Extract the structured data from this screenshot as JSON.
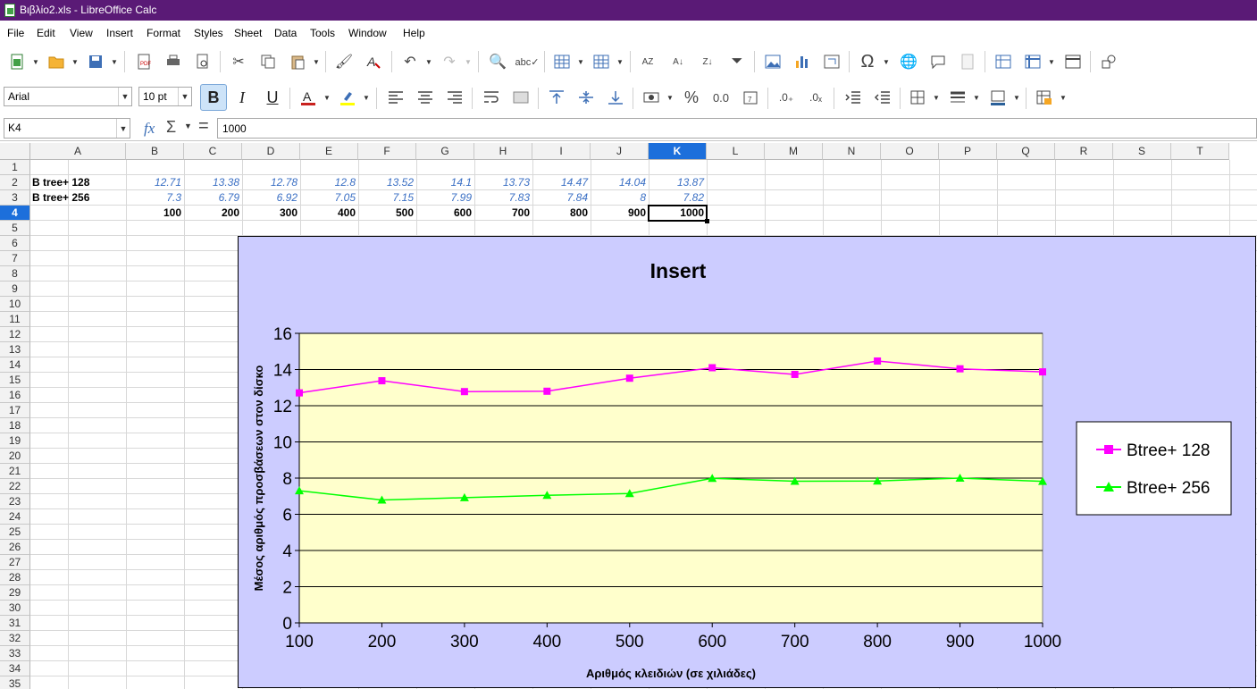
{
  "window": {
    "title": "Βιβλίο2.xls - LibreOffice Calc"
  },
  "menu": [
    "File",
    "Edit",
    "View",
    "Insert",
    "Format",
    "Styles",
    "Sheet",
    "Data",
    "Tools",
    "Window",
    "Help"
  ],
  "toolbar": {
    "font_name": "Arial",
    "font_size": "10 pt",
    "bold_active": true
  },
  "formula_bar": {
    "name_box": "K4",
    "fx_label": "fx",
    "sum_label": "Σ",
    "equals_label": "=",
    "content": "1000"
  },
  "sheet": {
    "columns": [
      "A",
      "B",
      "C",
      "D",
      "E",
      "F",
      "G",
      "H",
      "I",
      "J",
      "K",
      "L",
      "M",
      "N",
      "O",
      "P",
      "Q",
      "R",
      "S",
      "T"
    ],
    "selected_column": "K",
    "rows": [
      "1",
      "2",
      "3",
      "4",
      "5",
      "6",
      "7",
      "8",
      "9",
      "10",
      "11",
      "12",
      "13",
      "14",
      "15",
      "16",
      "17",
      "18",
      "19",
      "20",
      "21",
      "22",
      "23",
      "24",
      "25",
      "26",
      "27",
      "28",
      "29",
      "30",
      "31",
      "32",
      "33",
      "34",
      "35"
    ],
    "selected_row": "4",
    "row2": {
      "label": "B tree+ 128",
      "values": [
        "12.71",
        "13.38",
        "12.78",
        "12.8",
        "13.52",
        "14.1",
        "13.73",
        "14.47",
        "14.04",
        "13.87"
      ]
    },
    "row3": {
      "label": "B tree+ 256",
      "values": [
        "7.3",
        "6.79",
        "6.92",
        "7.05",
        "7.15",
        "7.99",
        "7.83",
        "7.84",
        "8",
        "7.82"
      ]
    },
    "row4": {
      "values": [
        "100",
        "200",
        "300",
        "400",
        "500",
        "600",
        "700",
        "800",
        "900",
        "1000"
      ]
    }
  },
  "chart_data": {
    "type": "line",
    "title": "Insert",
    "xlabel": "Αριθμός κλειδιών (σε χιλιάδες)",
    "ylabel": "Μέσος αριθμός προσβάσεων στον δίσκο",
    "categories": [
      "100",
      "200",
      "300",
      "400",
      "500",
      "600",
      "700",
      "800",
      "900",
      "1000"
    ],
    "ylim": [
      0,
      16
    ],
    "yticks": [
      "0",
      "2",
      "4",
      "6",
      "8",
      "10",
      "12",
      "14",
      "16"
    ],
    "grid": true,
    "legend_position": "right",
    "series": [
      {
        "name": "Btree+ 128",
        "color": "#ff00ff",
        "marker": "square",
        "values": [
          12.71,
          13.38,
          12.78,
          12.8,
          13.52,
          14.1,
          13.73,
          14.47,
          14.04,
          13.87
        ]
      },
      {
        "name": "Btree+ 256",
        "color": "#00ff00",
        "marker": "triangle",
        "values": [
          7.3,
          6.79,
          6.92,
          7.05,
          7.15,
          7.99,
          7.83,
          7.84,
          8,
          7.82
        ]
      }
    ],
    "colors": {
      "background": "#ccccff",
      "plot_area": "#ffffcc"
    }
  }
}
